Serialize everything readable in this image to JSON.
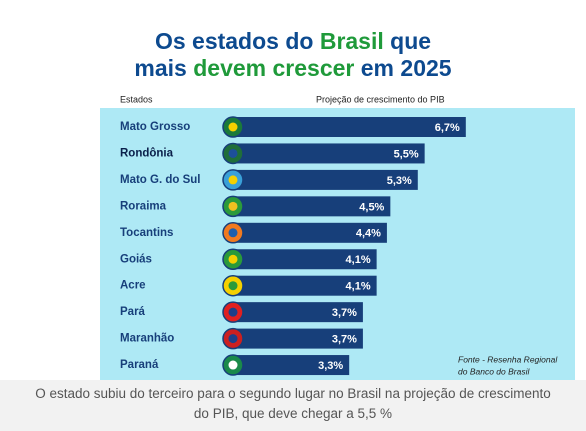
{
  "chart_data": {
    "type": "bar",
    "orientation": "horizontal",
    "title_lines": [
      [
        {
          "text": "Os estados do ",
          "color": "#0d4a8f"
        },
        {
          "text": "Brasil",
          "color": "#1f9a3a"
        },
        {
          "text": " que",
          "color": "#0d4a8f"
        }
      ],
      [
        {
          "text": "mais ",
          "color": "#0d4a8f"
        },
        {
          "text": "devem crescer",
          "color": "#1f9a3a"
        },
        {
          "text": " em 2025",
          "color": "#0d4a8f"
        }
      ]
    ],
    "category_header": "Estados",
    "value_header": "Projeção de crescimento do PIB",
    "categories": [
      "Mato Grosso",
      "Rondônia",
      "Mato G. do Sul",
      "Roraima",
      "Tocantins",
      "Goiás",
      "Acre",
      "Pará",
      "Maranhão",
      "Paraná"
    ],
    "values": [
      6.7,
      5.5,
      5.3,
      4.5,
      4.4,
      4.1,
      4.1,
      3.7,
      3.7,
      3.3
    ],
    "value_labels": [
      "6,7%",
      "5,5%",
      "5,3%",
      "4,5%",
      "4,4%",
      "4,1%",
      "4,1%",
      "3,7%",
      "3,7%",
      "3,3%"
    ],
    "color": "#173f7a",
    "source_lines": [
      "Fonte - Resenha Regional",
      "do Banco do Brasil"
    ]
  },
  "caption_lines": [
    "O estado subiu do terceiro para o segundo lugar no Brasil na projeção de crescimento",
    "do PIB, que deve chegar a 5,5 %"
  ]
}
